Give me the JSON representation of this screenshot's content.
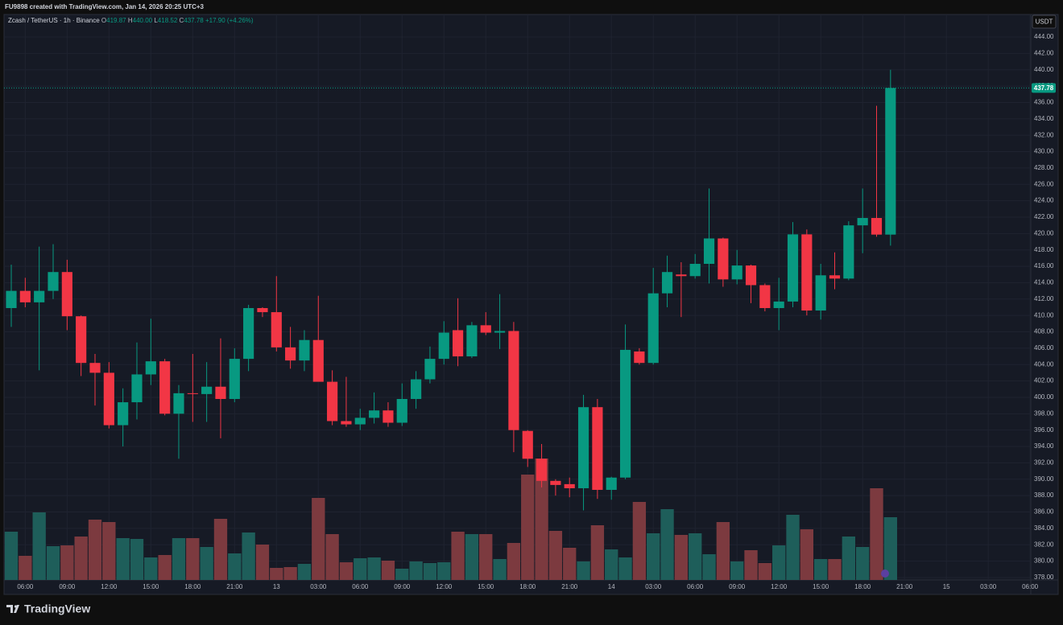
{
  "header": "FU9898 created with TradingView.com, Jan 14, 2026 20:25 UTC+3",
  "brand": "TradingView",
  "chart_data": {
    "type": "candlestick",
    "symbol": "Zcash / TetherUS · 1h · Binance",
    "legend": [
      {
        "label": "O",
        "value": "419.87"
      },
      {
        "label": "H",
        "value": "440.00"
      },
      {
        "label": "L",
        "value": "418.52"
      },
      {
        "label": "C",
        "value": "437.78"
      }
    ],
    "change": "+17.90 (+4.26%)",
    "currency": "USDT",
    "last_price": 437.78,
    "up_color": "#089981",
    "down_color": "#f23645",
    "volume_up_color": "#1e5e5a",
    "volume_down_color": "#7c3a3f",
    "grid": true,
    "ylim": [
      377.7,
      446.75
    ],
    "xlim": [
      -0.52,
      73.05
    ],
    "yticks": [
      {
        "value": 378,
        "label": "378.00"
      },
      {
        "value": 380,
        "label": "380.00"
      },
      {
        "value": 382,
        "label": "382.00"
      },
      {
        "value": 384,
        "label": "384.00"
      },
      {
        "value": 386,
        "label": "386.00"
      },
      {
        "value": 388,
        "label": "388.00"
      },
      {
        "value": 390,
        "label": "390.00"
      },
      {
        "value": 392,
        "label": "392.00"
      },
      {
        "value": 394,
        "label": "394.00"
      },
      {
        "value": 396,
        "label": "396.00"
      },
      {
        "value": 398,
        "label": "398.00"
      },
      {
        "value": 400,
        "label": "400.00"
      },
      {
        "value": 402,
        "label": "402.00"
      },
      {
        "value": 404,
        "label": "404.00"
      },
      {
        "value": 406,
        "label": "406.00"
      },
      {
        "value": 408,
        "label": "408.00"
      },
      {
        "value": 410,
        "label": "410.00"
      },
      {
        "value": 412,
        "label": "412.00"
      },
      {
        "value": 414,
        "label": "414.00"
      },
      {
        "value": 416,
        "label": "416.00"
      },
      {
        "value": 418,
        "label": "418.00"
      },
      {
        "value": 420,
        "label": "420.00"
      },
      {
        "value": 422,
        "label": "422.00"
      },
      {
        "value": 424,
        "label": "424.00"
      },
      {
        "value": 426,
        "label": "426.00"
      },
      {
        "value": 428,
        "label": "428.00"
      },
      {
        "value": 430,
        "label": "430.00"
      },
      {
        "value": 432,
        "label": "432.00"
      },
      {
        "value": 434,
        "label": "434.00"
      },
      {
        "value": 436,
        "label": "436.00"
      },
      {
        "value": 438,
        "label": "438.00"
      },
      {
        "value": 440,
        "label": "440.00"
      },
      {
        "value": 442,
        "label": "442.00"
      },
      {
        "value": 444,
        "label": "444.00"
      }
    ],
    "xticks": [
      {
        "value": 1,
        "label": "06:00"
      },
      {
        "value": 4,
        "label": "09:00"
      },
      {
        "value": 7,
        "label": "12:00"
      },
      {
        "value": 10,
        "label": "15:00"
      },
      {
        "value": 13,
        "label": "18:00"
      },
      {
        "value": 16,
        "label": "21:00"
      },
      {
        "value": 19,
        "label": "13"
      },
      {
        "value": 22,
        "label": "03:00"
      },
      {
        "value": 25,
        "label": "06:00"
      },
      {
        "value": 28,
        "label": "09:00"
      },
      {
        "value": 31,
        "label": "12:00"
      },
      {
        "value": 34,
        "label": "15:00"
      },
      {
        "value": 37,
        "label": "18:00"
      },
      {
        "value": 40,
        "label": "21:00"
      },
      {
        "value": 43,
        "label": "14"
      },
      {
        "value": 46,
        "label": "03:00"
      },
      {
        "value": 49,
        "label": "06:00"
      },
      {
        "value": 52,
        "label": "09:00"
      },
      {
        "value": 55,
        "label": "12:00"
      },
      {
        "value": 58,
        "label": "15:00"
      },
      {
        "value": 61,
        "label": "18:00"
      },
      {
        "value": 64,
        "label": "21:00"
      },
      {
        "value": 67,
        "label": "15"
      },
      {
        "value": 70,
        "label": "03:00"
      },
      {
        "value": 73,
        "label": "06:00"
      }
    ],
    "candles": [
      {
        "open": 410.9,
        "high": 416.2,
        "low": 408.6,
        "close": 413.0
      },
      {
        "open": 413.0,
        "high": 414.6,
        "low": 411.0,
        "close": 411.6
      },
      {
        "open": 411.6,
        "high": 418.4,
        "low": 403.3,
        "close": 413.0
      },
      {
        "open": 413.0,
        "high": 418.7,
        "low": 412.0,
        "close": 415.3
      },
      {
        "open": 415.3,
        "high": 416.8,
        "low": 408.2,
        "close": 409.9
      },
      {
        "open": 409.9,
        "high": 410.0,
        "low": 402.6,
        "close": 404.2
      },
      {
        "open": 404.2,
        "high": 405.3,
        "low": 399.0,
        "close": 403.0
      },
      {
        "open": 403.0,
        "high": 404.3,
        "low": 396.2,
        "close": 396.6
      },
      {
        "open": 396.6,
        "high": 401.1,
        "low": 394.0,
        "close": 399.4
      },
      {
        "open": 399.4,
        "high": 406.7,
        "low": 397.3,
        "close": 402.8
      },
      {
        "open": 402.8,
        "high": 409.6,
        "low": 401.5,
        "close": 404.4
      },
      {
        "open": 404.4,
        "high": 404.7,
        "low": 397.8,
        "close": 398.0
      },
      {
        "open": 398.0,
        "high": 401.5,
        "low": 392.5,
        "close": 400.5
      },
      {
        "open": 400.5,
        "high": 405.3,
        "low": 397.0,
        "close": 400.4
      },
      {
        "open": 400.4,
        "high": 404.3,
        "low": 397.0,
        "close": 401.3
      },
      {
        "open": 401.3,
        "high": 407.2,
        "low": 395.0,
        "close": 399.8
      },
      {
        "open": 399.8,
        "high": 406.0,
        "low": 399.4,
        "close": 404.7
      },
      {
        "open": 404.7,
        "high": 411.3,
        "low": 403.2,
        "close": 410.9
      },
      {
        "open": 410.9,
        "high": 411.0,
        "low": 409.8,
        "close": 410.4
      },
      {
        "open": 410.4,
        "high": 414.8,
        "low": 405.6,
        "close": 406.1
      },
      {
        "open": 406.1,
        "high": 408.6,
        "low": 403.5,
        "close": 404.5
      },
      {
        "open": 404.5,
        "high": 408.2,
        "low": 403.2,
        "close": 407.0
      },
      {
        "open": 407.0,
        "high": 412.4,
        "low": 402.0,
        "close": 401.9
      },
      {
        "open": 401.9,
        "high": 403.3,
        "low": 396.6,
        "close": 397.1
      },
      {
        "open": 397.1,
        "high": 402.5,
        "low": 396.4,
        "close": 396.7
      },
      {
        "open": 396.7,
        "high": 398.6,
        "low": 396.0,
        "close": 397.5
      },
      {
        "open": 397.5,
        "high": 400.6,
        "low": 396.8,
        "close": 398.4
      },
      {
        "open": 398.4,
        "high": 399.4,
        "low": 396.4,
        "close": 396.9
      },
      {
        "open": 396.9,
        "high": 401.7,
        "low": 396.5,
        "close": 399.8
      },
      {
        "open": 399.8,
        "high": 403.2,
        "low": 398.6,
        "close": 402.2
      },
      {
        "open": 402.2,
        "high": 406.2,
        "low": 401.7,
        "close": 404.7
      },
      {
        "open": 404.7,
        "high": 409.3,
        "low": 404.0,
        "close": 407.9
      },
      {
        "open": 408.2,
        "high": 412.1,
        "low": 403.8,
        "close": 405.0
      },
      {
        "open": 405.0,
        "high": 409.2,
        "low": 404.8,
        "close": 408.8
      },
      {
        "open": 408.8,
        "high": 410.4,
        "low": 407.6,
        "close": 407.9
      },
      {
        "open": 407.9,
        "high": 412.6,
        "low": 405.9,
        "close": 408.1
      },
      {
        "open": 408.1,
        "high": 409.2,
        "low": 393.3,
        "close": 396.0
      },
      {
        "open": 395.9,
        "high": 396.0,
        "low": 391.5,
        "close": 392.5
      },
      {
        "open": 392.5,
        "high": 394.3,
        "low": 389.0,
        "close": 389.8
      },
      {
        "open": 389.8,
        "high": 390.0,
        "low": 388.0,
        "close": 389.3
      },
      {
        "open": 389.4,
        "high": 390.2,
        "low": 387.8,
        "close": 388.9
      },
      {
        "open": 388.9,
        "high": 400.3,
        "low": 386.2,
        "close": 398.8
      },
      {
        "open": 398.8,
        "high": 399.8,
        "low": 387.6,
        "close": 388.7
      },
      {
        "open": 388.7,
        "high": 390.3,
        "low": 387.5,
        "close": 390.2
      },
      {
        "open": 390.2,
        "high": 408.9,
        "low": 390.0,
        "close": 405.8
      },
      {
        "open": 405.6,
        "high": 406.0,
        "low": 404.0,
        "close": 404.2
      },
      {
        "open": 404.2,
        "high": 415.8,
        "low": 404.0,
        "close": 412.7
      },
      {
        "open": 412.7,
        "high": 417.3,
        "low": 411.0,
        "close": 415.3
      },
      {
        "open": 415.0,
        "high": 416.5,
        "low": 409.8,
        "close": 414.8
      },
      {
        "open": 414.8,
        "high": 417.5,
        "low": 414.5,
        "close": 416.3
      },
      {
        "open": 416.3,
        "high": 425.5,
        "low": 413.9,
        "close": 419.4
      },
      {
        "open": 419.4,
        "high": 419.5,
        "low": 413.5,
        "close": 414.4
      },
      {
        "open": 414.4,
        "high": 418.0,
        "low": 413.8,
        "close": 416.1
      },
      {
        "open": 416.1,
        "high": 416.2,
        "low": 411.5,
        "close": 413.7
      },
      {
        "open": 413.7,
        "high": 413.9,
        "low": 410.5,
        "close": 410.9
      },
      {
        "open": 410.9,
        "high": 414.6,
        "low": 408.2,
        "close": 411.7
      },
      {
        "open": 411.7,
        "high": 421.4,
        "low": 411.0,
        "close": 419.9
      },
      {
        "open": 419.9,
        "high": 420.5,
        "low": 410.0,
        "close": 410.6
      },
      {
        "open": 410.6,
        "high": 416.3,
        "low": 409.5,
        "close": 414.9
      },
      {
        "open": 414.9,
        "high": 417.7,
        "low": 413.2,
        "close": 414.5
      },
      {
        "open": 414.5,
        "high": 421.5,
        "low": 414.3,
        "close": 421.0
      },
      {
        "open": 421.0,
        "high": 425.5,
        "low": 417.6,
        "close": 421.9
      },
      {
        "open": 421.9,
        "high": 435.6,
        "low": 419.6,
        "close": 419.87
      },
      {
        "open": 419.87,
        "high": 440.0,
        "low": 418.52,
        "close": 437.78
      }
    ],
    "volumes": [
      60,
      30,
      84,
      42,
      43,
      54,
      75,
      72,
      52,
      51,
      28,
      31,
      52,
      52,
      41,
      76,
      33,
      59,
      44,
      15,
      16,
      20,
      102,
      57,
      22,
      27,
      28,
      24,
      14,
      23,
      21,
      22,
      60,
      57,
      57,
      26,
      46,
      131,
      151,
      61,
      40,
      23,
      68,
      38,
      28,
      97,
      58,
      88,
      56,
      58,
      32,
      72,
      23,
      37,
      21,
      43,
      81,
      63,
      26,
      26,
      54,
      41,
      114,
      78
    ]
  }
}
